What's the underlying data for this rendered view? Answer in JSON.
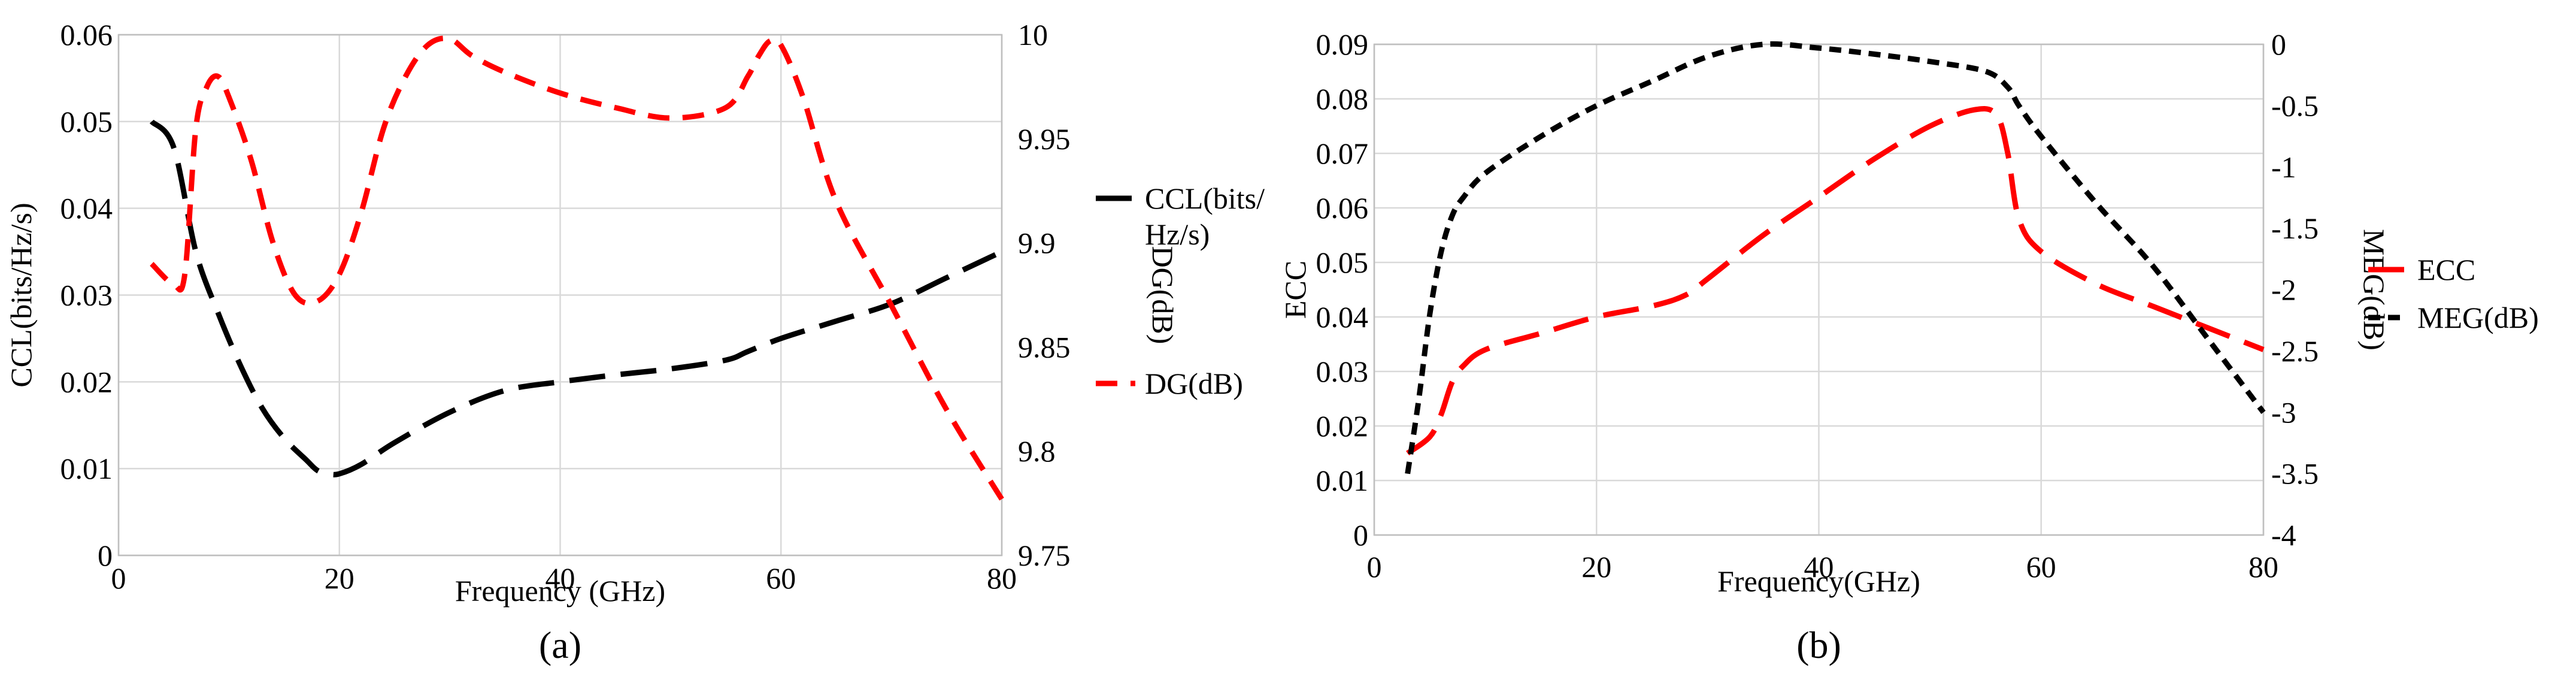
{
  "chart_data": [
    {
      "panel": "(a)",
      "type": "line",
      "xlabel": "Frequency (GHz)",
      "ylabel": "CCL(bits/Hz/s)",
      "y2label": "DG(dB)",
      "xlim": [
        0,
        80
      ],
      "ylim": [
        0,
        0.06
      ],
      "y2lim": [
        9.75,
        10
      ],
      "xticks": [
        "0",
        "20",
        "40",
        "60",
        "80"
      ],
      "yticks": [
        "0",
        "0.01",
        "0.02",
        "0.03",
        "0.04",
        "0.05",
        "0.06"
      ],
      "y2ticks": [
        "9.75",
        "9.8",
        "9.85",
        "9.9",
        "9.95",
        "10"
      ],
      "grid": true,
      "legend_position": "right",
      "series": [
        {
          "name": "CCL(bits/Hz/s)",
          "legend_lines": [
            "CCL(bits/",
            "Hz/s)"
          ],
          "axis": "left",
          "color": "#000000",
          "dash": "long-dash",
          "x": [
            3,
            5,
            7,
            9,
            11,
            13,
            15,
            17,
            18,
            19,
            20,
            22,
            25,
            30,
            35,
            40,
            45,
            50,
            55,
            57,
            60,
            65,
            70,
            75,
            80
          ],
          "y": [
            0.05,
            0.047,
            0.035,
            0.028,
            0.022,
            0.017,
            0.0135,
            0.011,
            0.0098,
            0.0094,
            0.0094,
            0.0105,
            0.013,
            0.0165,
            0.019,
            0.02,
            0.0208,
            0.0215,
            0.0225,
            0.0235,
            0.025,
            0.027,
            0.029,
            0.032,
            0.035
          ]
        },
        {
          "name": "DG(dB)",
          "axis": "right",
          "color": "#ff0000",
          "dash": "dash",
          "x": [
            3,
            5,
            6,
            7,
            8,
            9,
            10,
            12,
            14,
            16,
            18,
            20,
            22,
            24,
            26,
            28,
            30,
            32,
            35,
            40,
            45,
            50,
            55,
            57,
            58,
            59,
            60,
            62,
            65,
            70,
            75,
            80
          ],
          "y": [
            9.89,
            9.88,
            9.885,
            9.955,
            9.975,
            9.98,
            9.97,
            9.94,
            9.9,
            9.875,
            9.872,
            9.885,
            9.915,
            9.955,
            9.98,
            9.995,
            9.998,
            9.99,
            9.982,
            9.972,
            9.965,
            9.96,
            9.965,
            9.98,
            9.99,
            9.997,
            9.995,
            9.97,
            9.92,
            9.87,
            9.82,
            9.777
          ]
        }
      ]
    },
    {
      "panel": "(b)",
      "type": "line",
      "xlabel": "Frequency(GHz)",
      "ylabel": "ECC",
      "y2label": "MEG(dB)",
      "xlim": [
        0,
        80
      ],
      "ylim": [
        0,
        0.09
      ],
      "y2lim": [
        -4,
        0
      ],
      "xticks": [
        "0",
        "20",
        "40",
        "60",
        "80"
      ],
      "yticks": [
        "0",
        "0.01",
        "0.02",
        "0.03",
        "0.04",
        "0.05",
        "0.06",
        "0.07",
        "0.08",
        "0.09"
      ],
      "y2ticks": [
        "-4",
        "-3.5",
        "-3",
        "-2.5",
        "-2",
        "-1.5",
        "-1",
        "-0.5",
        "0"
      ],
      "grid": true,
      "legend_position": "right",
      "series": [
        {
          "name": "ECC",
          "legend_lines": [
            "ECC"
          ],
          "axis": "left",
          "color": "#ff0000",
          "dash": "long-dash",
          "x": [
            3,
            5,
            6,
            7,
            8,
            10,
            15,
            20,
            25,
            28,
            30,
            35,
            40,
            45,
            50,
            54,
            56,
            57,
            58,
            60,
            65,
            70,
            75,
            80
          ],
          "y": [
            0.015,
            0.018,
            0.022,
            0.028,
            0.031,
            0.034,
            0.037,
            0.04,
            0.042,
            0.044,
            0.047,
            0.055,
            0.062,
            0.069,
            0.075,
            0.078,
            0.077,
            0.07,
            0.058,
            0.052,
            0.046,
            0.042,
            0.038,
            0.034
          ]
        },
        {
          "name": "MEG(dB)",
          "legend_lines": [
            "MEG(dB)"
          ],
          "axis": "right",
          "color": "#000000",
          "dash": "short-dash",
          "x": [
            3,
            4,
            5,
            6,
            7,
            8,
            10,
            15,
            20,
            25,
            30,
            35,
            40,
            45,
            50,
            55,
            57,
            58,
            60,
            65,
            70,
            75,
            80
          ],
          "y": [
            -3.5,
            -2.9,
            -2.2,
            -1.7,
            -1.4,
            -1.25,
            -1.05,
            -0.75,
            -0.5,
            -0.3,
            -0.1,
            0.0,
            -0.03,
            -0.08,
            -0.14,
            -0.22,
            -0.35,
            -0.5,
            -0.75,
            -1.3,
            -1.8,
            -2.4,
            -3.0
          ]
        }
      ]
    }
  ]
}
